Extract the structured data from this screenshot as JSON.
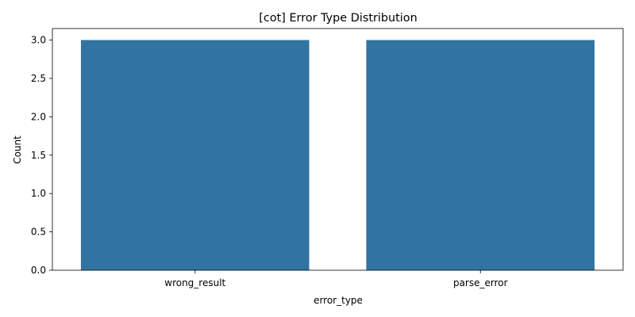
{
  "chart_data": {
    "type": "bar",
    "title": "[cot] Error Type Distribution",
    "xlabel": "error_type",
    "ylabel": "Count",
    "categories": [
      "wrong_result",
      "parse_error"
    ],
    "values": [
      3,
      3
    ],
    "ylim": [
      0,
      3.15
    ],
    "yticks": [
      0.0,
      0.5,
      1.0,
      1.5,
      2.0,
      2.5,
      3.0
    ],
    "ytick_labels": [
      "0.0",
      "0.5",
      "1.0",
      "1.5",
      "2.0",
      "2.5",
      "3.0"
    ],
    "grid": false,
    "bar_color": "#3274a1"
  }
}
